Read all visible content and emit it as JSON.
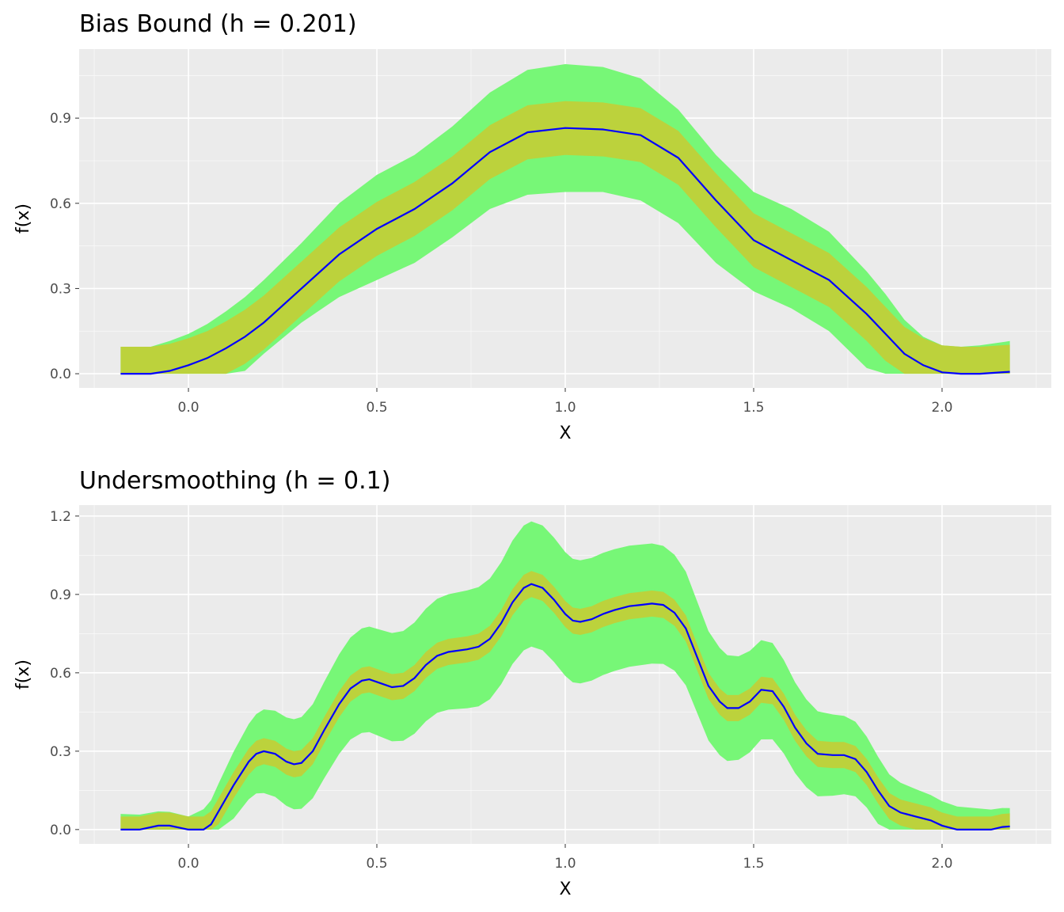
{
  "colors": {
    "panel_bg": "#ebebeb",
    "outer_band": "#77f777",
    "inner_band": "#bcd23c",
    "line": "#0000ff"
  },
  "chart_data": [
    {
      "type": "area",
      "title": "Bias Bound (h = 0.201)",
      "xlabel": "X",
      "ylabel": "f(x)",
      "xlim": [
        -0.29,
        2.29
      ],
      "ylim": [
        -0.05,
        1.143
      ],
      "xticks": [
        0,
        0.5,
        1,
        1.5,
        2
      ],
      "xtick_labels": [
        "0.0",
        "0.5",
        "1.0",
        "1.5",
        "2.0"
      ],
      "yticks": [
        0,
        0.3,
        0.6,
        0.9
      ],
      "ytick_labels": [
        "0.0",
        "0.3",
        "0.6",
        "0.9"
      ],
      "yminor": [
        0.15,
        0.45,
        0.75,
        1.05
      ],
      "grid": true,
      "x": [
        -0.18,
        -0.1,
        -0.05,
        0,
        0.05,
        0.1,
        0.15,
        0.2,
        0.3,
        0.4,
        0.5,
        0.6,
        0.7,
        0.8,
        0.9,
        1.0,
        1.1,
        1.2,
        1.3,
        1.4,
        1.5,
        1.6,
        1.7,
        1.8,
        1.85,
        1.9,
        1.95,
        2.0,
        2.05,
        2.1,
        2.18
      ],
      "center": [
        0,
        0,
        0.01,
        0.03,
        0.055,
        0.09,
        0.13,
        0.18,
        0.3,
        0.42,
        0.51,
        0.58,
        0.67,
        0.78,
        0.85,
        0.865,
        0.86,
        0.84,
        0.76,
        0.61,
        0.47,
        0.4,
        0.33,
        0.21,
        0.14,
        0.07,
        0.03,
        0.005,
        0,
        0,
        0.007
      ],
      "inner_halfwidth": 0.095,
      "inner_min_upper": 0.095,
      "outer_upper": [
        0.095,
        0.095,
        0.115,
        0.14,
        0.175,
        0.22,
        0.27,
        0.33,
        0.46,
        0.6,
        0.7,
        0.77,
        0.87,
        0.99,
        1.07,
        1.09,
        1.08,
        1.04,
        0.93,
        0.77,
        0.64,
        0.58,
        0.5,
        0.36,
        0.28,
        0.19,
        0.13,
        0.1,
        0.095,
        0.1,
        0.115
      ],
      "outer_lower": [
        0,
        0,
        0,
        0,
        0,
        0,
        0.01,
        0.07,
        0.18,
        0.27,
        0.33,
        0.39,
        0.48,
        0.58,
        0.63,
        0.64,
        0.64,
        0.61,
        0.53,
        0.39,
        0.29,
        0.23,
        0.15,
        0.02,
        0,
        0,
        0,
        0,
        0,
        0,
        0
      ]
    },
    {
      "type": "area",
      "title": "Undersmoothing (h = 0.1)",
      "xlabel": "X",
      "ylabel": "f(x)",
      "xlim": [
        -0.29,
        2.29
      ],
      "ylim": [
        -0.055,
        1.242
      ],
      "xticks": [
        0,
        0.5,
        1,
        1.5,
        2
      ],
      "xtick_labels": [
        "0.0",
        "0.5",
        "1.0",
        "1.5",
        "2.0"
      ],
      "yticks": [
        0,
        0.3,
        0.6,
        0.9,
        1.2
      ],
      "ytick_labels": [
        "0.0",
        "0.3",
        "0.6",
        "0.9",
        "1.2"
      ],
      "yminor": [
        0.15,
        0.45,
        0.75,
        1.05
      ],
      "grid": true,
      "x": [
        -0.18,
        -0.13,
        -0.08,
        -0.05,
        0,
        0.04,
        0.06,
        0.08,
        0.12,
        0.16,
        0.18,
        0.2,
        0.23,
        0.26,
        0.28,
        0.3,
        0.33,
        0.36,
        0.4,
        0.43,
        0.46,
        0.48,
        0.51,
        0.54,
        0.57,
        0.6,
        0.63,
        0.66,
        0.69,
        0.74,
        0.77,
        0.8,
        0.83,
        0.86,
        0.89,
        0.91,
        0.94,
        0.97,
        1.0,
        1.02,
        1.04,
        1.07,
        1.1,
        1.13,
        1.17,
        1.2,
        1.23,
        1.26,
        1.29,
        1.32,
        1.35,
        1.38,
        1.41,
        1.43,
        1.46,
        1.49,
        1.52,
        1.55,
        1.58,
        1.61,
        1.64,
        1.67,
        1.71,
        1.74,
        1.77,
        1.8,
        1.83,
        1.86,
        1.89,
        1.93,
        1.97,
        2.0,
        2.04,
        2.13,
        2.16,
        2.18
      ],
      "center": [
        0,
        0,
        0.015,
        0.015,
        0,
        0,
        0.02,
        0.07,
        0.17,
        0.26,
        0.29,
        0.3,
        0.29,
        0.26,
        0.25,
        0.255,
        0.3,
        0.38,
        0.48,
        0.54,
        0.57,
        0.575,
        0.56,
        0.545,
        0.55,
        0.58,
        0.63,
        0.665,
        0.68,
        0.69,
        0.7,
        0.73,
        0.79,
        0.87,
        0.925,
        0.94,
        0.925,
        0.88,
        0.825,
        0.8,
        0.795,
        0.805,
        0.825,
        0.84,
        0.855,
        0.86,
        0.865,
        0.86,
        0.83,
        0.77,
        0.66,
        0.55,
        0.49,
        0.465,
        0.465,
        0.49,
        0.535,
        0.53,
        0.47,
        0.39,
        0.33,
        0.29,
        0.285,
        0.285,
        0.27,
        0.22,
        0.15,
        0.09,
        0.065,
        0.05,
        0.035,
        0.015,
        0,
        0,
        0.01,
        0.012
      ],
      "inner_halfwidth": 0.05,
      "inner_min_upper": 0.05,
      "outer_hw_knots_x": [
        -0.18,
        0,
        0.1,
        0.2,
        0.46,
        0.9,
        1.23,
        1.52,
        1.74,
        1.95,
        2.18
      ],
      "outer_hw_knots": [
        0.06,
        0.05,
        0.12,
        0.16,
        0.2,
        0.24,
        0.23,
        0.19,
        0.15,
        0.1,
        0.07
      ]
    }
  ]
}
